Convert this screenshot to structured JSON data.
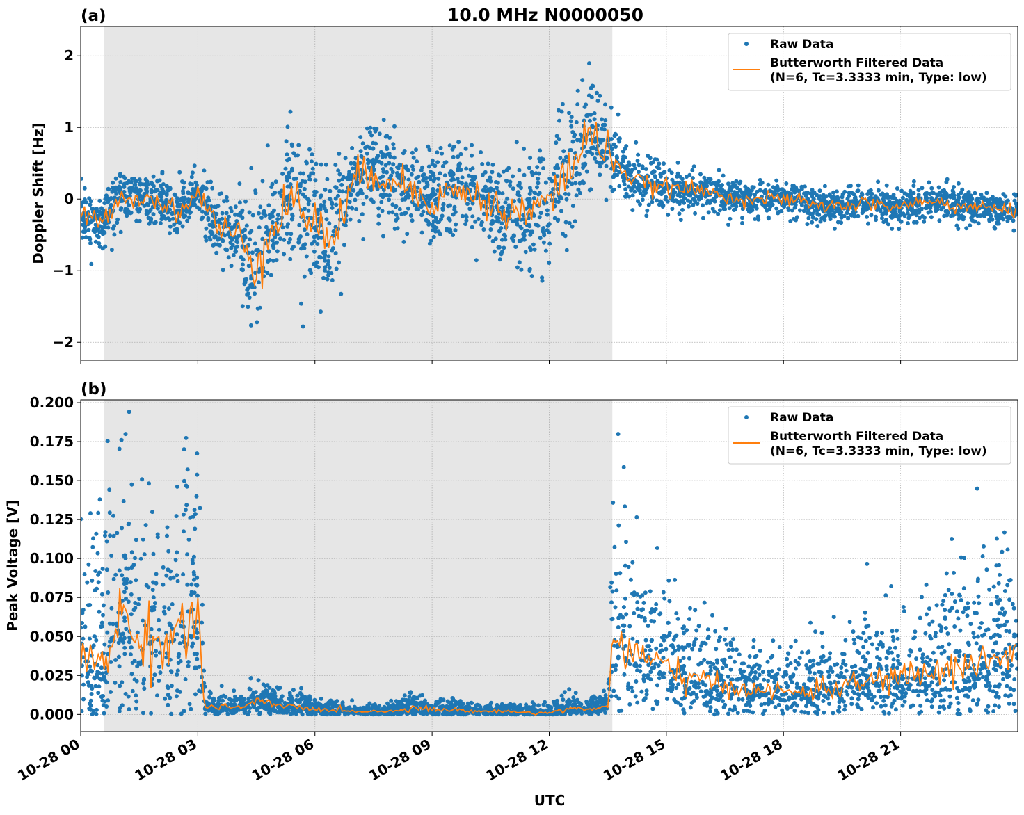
{
  "title": "10.0 MHz N0000050",
  "colors": {
    "raw": "#1f77b4",
    "filtered": "#ff7f0e",
    "shade": "#e6e6e6",
    "grid": "#b0b0b0"
  },
  "legend": {
    "raw_label": "Raw Data",
    "filtered_label_line1": "Butterworth Filtered Data",
    "filtered_label_line2": "(N=6, Tc=3.3333 min, Type: low)",
    "placement": "upper-right"
  },
  "xlabel": "UTC",
  "chart_data": [
    {
      "type": "scatter",
      "panel_label": "(a)",
      "ylabel": "Doppler Shift [Hz]",
      "ylim": [
        -2.25,
        2.41
      ],
      "yticks": [
        2,
        1,
        0,
        -1,
        -2
      ],
      "ytick_labels": [
        "2",
        "1",
        "0",
        "−1",
        "−2"
      ],
      "xlim": [
        "10-28 00:00",
        "10-29 00:00"
      ],
      "xticks": [
        "10-28 00",
        "10-28 03",
        "10-28 06",
        "10-28 09",
        "10-28 12",
        "10-28 15",
        "10-28 18",
        "10-28 21"
      ],
      "show_xtick_labels": false,
      "grid": true,
      "shaded_interval": [
        "10-28 00:36",
        "10-28 13:37"
      ],
      "x": [
        "00:00",
        "00:30",
        "01:00",
        "01:30",
        "02:00",
        "02:30",
        "03:00",
        "03:30",
        "04:00",
        "04:30",
        "05:00",
        "05:30",
        "06:00",
        "06:30",
        "07:00",
        "07:30",
        "08:00",
        "08:30",
        "09:00",
        "09:30",
        "10:00",
        "10:30",
        "11:00",
        "11:30",
        "12:00",
        "12:30",
        "13:00",
        "13:30",
        "14:00",
        "14:30",
        "15:00",
        "15:30",
        "16:00",
        "16:30",
        "17:00",
        "17:30",
        "18:00",
        "18:30",
        "19:00",
        "19:30",
        "20:00",
        "20:30",
        "21:00",
        "21:30",
        "22:00",
        "22:30",
        "23:00",
        "23:30",
        "24:00"
      ],
      "series": [
        {
          "name": "Butterworth Filtered Data",
          "kind": "line",
          "values": [
            -0.2,
            -0.35,
            0.05,
            0.0,
            0.0,
            -0.2,
            0.1,
            -0.4,
            -0.5,
            -0.9,
            -0.2,
            0.0,
            -0.4,
            -0.5,
            0.2,
            0.4,
            0.3,
            0.1,
            0.0,
            0.1,
            0.1,
            -0.1,
            -0.2,
            -0.2,
            0.0,
            0.4,
            0.9,
            0.7,
            0.3,
            0.2,
            0.15,
            0.15,
            0.1,
            0.05,
            0.0,
            0.0,
            0.0,
            -0.05,
            -0.1,
            -0.1,
            -0.05,
            -0.1,
            -0.1,
            -0.05,
            -0.05,
            -0.1,
            -0.1,
            -0.15,
            -0.2
          ]
        },
        {
          "name": "Raw Data",
          "kind": "scatter",
          "spread_hz": [
            0.3,
            0.3,
            0.3,
            0.3,
            0.3,
            0.3,
            0.3,
            0.5,
            0.5,
            0.7,
            0.8,
            0.8,
            0.8,
            0.7,
            0.6,
            0.6,
            0.6,
            0.5,
            0.5,
            0.5,
            0.5,
            0.5,
            0.6,
            0.7,
            0.7,
            0.7,
            0.7,
            0.5,
            0.25,
            0.25,
            0.25,
            0.25,
            0.2,
            0.2,
            0.2,
            0.2,
            0.2,
            0.2,
            0.2,
            0.2,
            0.2,
            0.2,
            0.2,
            0.2,
            0.2,
            0.2,
            0.2,
            0.2,
            0.2
          ]
        }
      ]
    },
    {
      "type": "scatter",
      "panel_label": "(b)",
      "ylabel": "Peak Voltage [V]",
      "ylim": [
        -0.011,
        0.2018
      ],
      "yticks": [
        0.2,
        0.175,
        0.15,
        0.125,
        0.1,
        0.075,
        0.05,
        0.025,
        0.0
      ],
      "ytick_labels": [
        "0.200",
        "0.175",
        "0.150",
        "0.125",
        "0.100",
        "0.075",
        "0.050",
        "0.025",
        "0.000"
      ],
      "xlim": [
        "10-28 00:00",
        "10-29 00:00"
      ],
      "xticks": [
        "10-28 00",
        "10-28 03",
        "10-28 06",
        "10-28 09",
        "10-28 12",
        "10-28 15",
        "10-28 18",
        "10-28 21"
      ],
      "show_xtick_labels": true,
      "grid": true,
      "shaded_interval": [
        "10-28 00:36",
        "10-28 13:37"
      ],
      "x": [
        "00:00",
        "00:30",
        "01:00",
        "01:30",
        "02:00",
        "02:30",
        "03:00",
        "03:10",
        "03:30",
        "04:00",
        "04:30",
        "05:00",
        "05:30",
        "06:00",
        "06:30",
        "07:00",
        "07:30",
        "08:00",
        "08:30",
        "09:00",
        "09:30",
        "10:00",
        "10:30",
        "11:00",
        "11:30",
        "12:00",
        "12:30",
        "13:00",
        "13:30",
        "13:35",
        "14:00",
        "14:30",
        "15:00",
        "15:30",
        "16:00",
        "16:30",
        "17:00",
        "17:30",
        "18:00",
        "18:30",
        "19:00",
        "19:30",
        "20:00",
        "20:30",
        "21:00",
        "21:30",
        "22:00",
        "22:30",
        "23:00",
        "23:30",
        "24:00"
      ],
      "series": [
        {
          "name": "Butterworth Filtered Data",
          "kind": "line",
          "values": [
            0.035,
            0.035,
            0.06,
            0.05,
            0.045,
            0.055,
            0.06,
            0.005,
            0.005,
            0.004,
            0.008,
            0.006,
            0.005,
            0.003,
            0.003,
            0.002,
            0.002,
            0.002,
            0.005,
            0.003,
            0.003,
            0.002,
            0.002,
            0.002,
            0.001,
            0.001,
            0.004,
            0.003,
            0.005,
            0.05,
            0.04,
            0.035,
            0.03,
            0.025,
            0.02,
            0.018,
            0.017,
            0.015,
            0.014,
            0.015,
            0.016,
            0.018,
            0.02,
            0.022,
            0.025,
            0.025,
            0.028,
            0.03,
            0.035,
            0.035,
            0.04
          ]
        },
        {
          "name": "Raw Data",
          "kind": "scatter",
          "spread_v": [
            0.03,
            0.04,
            0.05,
            0.04,
            0.04,
            0.05,
            0.05,
            0.004,
            0.004,
            0.004,
            0.006,
            0.005,
            0.004,
            0.003,
            0.003,
            0.002,
            0.002,
            0.002,
            0.005,
            0.003,
            0.003,
            0.002,
            0.002,
            0.002,
            0.002,
            0.002,
            0.004,
            0.003,
            0.004,
            0.04,
            0.03,
            0.025,
            0.022,
            0.02,
            0.016,
            0.014,
            0.013,
            0.012,
            0.012,
            0.012,
            0.013,
            0.014,
            0.016,
            0.018,
            0.02,
            0.02,
            0.022,
            0.025,
            0.028,
            0.028,
            0.03
          ]
        }
      ]
    }
  ]
}
